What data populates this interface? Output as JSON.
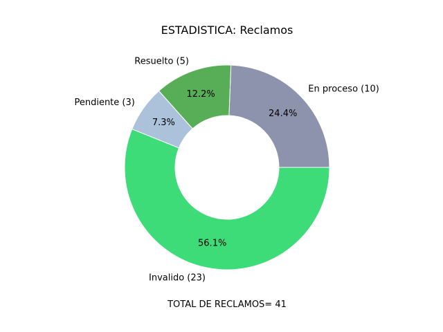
{
  "chart_data": {
    "type": "pie",
    "style": "donut",
    "title": "ESTADISTICA: Reclamos",
    "footer": "TOTAL DE RECLAMOS= 41",
    "total": 41,
    "slices": [
      {
        "label": "En proceso (10)",
        "value": 10,
        "percent_label": "24.4%",
        "color": "#8e93ad"
      },
      {
        "label": "Resuelto (5)",
        "value": 5,
        "percent_label": "12.2%",
        "color": "#58ae56"
      },
      {
        "label": "Pendiente (3)",
        "value": 3,
        "percent_label": "7.3%",
        "color": "#abc2da"
      },
      {
        "label": "Invalido (23)",
        "value": 23,
        "percent_label": "56.1%",
        "color": "#3ddc78"
      }
    ]
  }
}
